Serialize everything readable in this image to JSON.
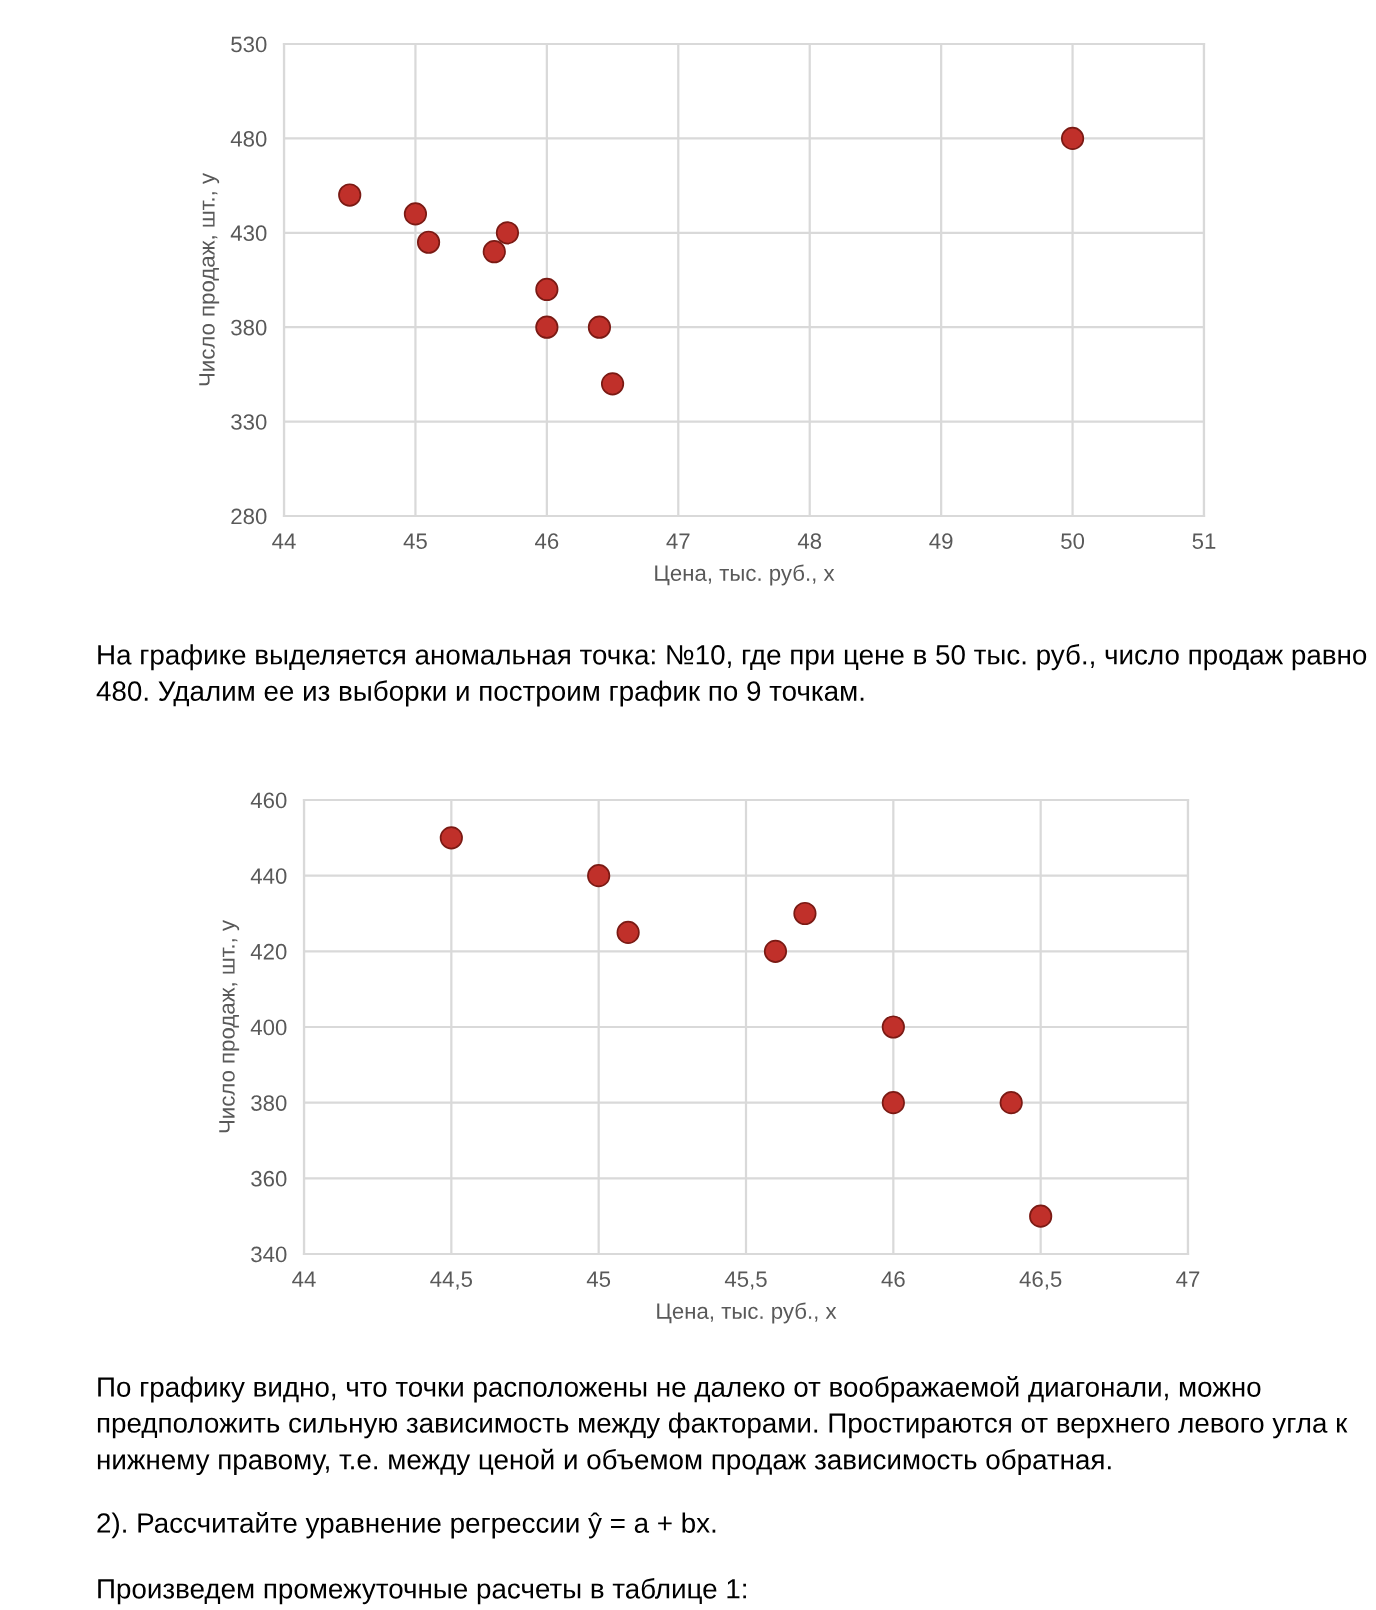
{
  "chart_data": [
    {
      "type": "scatter",
      "xlabel": "Цена, тыс. руб., x",
      "ylabel": "Число продаж, шт., y",
      "x": [
        44.5,
        45,
        45.1,
        45.6,
        45.7,
        46,
        46,
        46.4,
        46.5,
        50
      ],
      "series": [
        {
          "color": "#c0302a",
          "values": [
            450,
            440,
            425,
            420,
            430,
            400,
            380,
            380,
            350,
            480
          ]
        }
      ],
      "xlim": [
        44,
        51
      ],
      "xticks": [
        44,
        45,
        46,
        47,
        48,
        49,
        50,
        51
      ],
      "ylim": [
        280,
        530
      ],
      "yticks": [
        280,
        330,
        380,
        430,
        480,
        530
      ],
      "grid": true,
      "marker": "circle",
      "legend": false,
      "annotations": [
        "На графике выделяется аномальная точка: №10, где при цене в 50 тыс. руб., число продаж равно 480. Удалим ее из выборки и построим график по 9 точкам."
      ]
    },
    {
      "type": "scatter",
      "xlabel": "Цена, тыс. руб., x",
      "ylabel": "Число продаж, шт., y",
      "x": [
        44.5,
        45,
        45.1,
        45.6,
        45.7,
        46,
        46,
        46.4,
        46.5
      ],
      "series": [
        {
          "color": "#c0302a",
          "values": [
            450,
            440,
            425,
            420,
            430,
            400,
            380,
            380,
            350
          ]
        }
      ],
      "xlim": [
        44,
        47
      ],
      "xticks": [
        44,
        {
          "value": 44.5,
          "label": "44,5"
        },
        45,
        {
          "value": 45.5,
          "label": "45,5"
        },
        46,
        {
          "value": 46.5,
          "label": "46,5"
        },
        47
      ],
      "ylim": [
        340,
        460
      ],
      "yticks": [
        340,
        360,
        380,
        400,
        420,
        440,
        460
      ],
      "grid": true,
      "marker": "circle",
      "legend": false,
      "annotations": [
        "По графику видно, что точки расположены не далеко от воображаемой диагонали, можно предположить сильную зависимость между факторами. Простираются от верхнего левого угла к нижнему правому, т.е. между ценой и объемом продаж зависимость обратная.",
        "2). Рассчитайте уравнение регрессии ŷ = a + bx.",
        "Произведем промежуточные расчеты в таблице 1:"
      ]
    }
  ]
}
